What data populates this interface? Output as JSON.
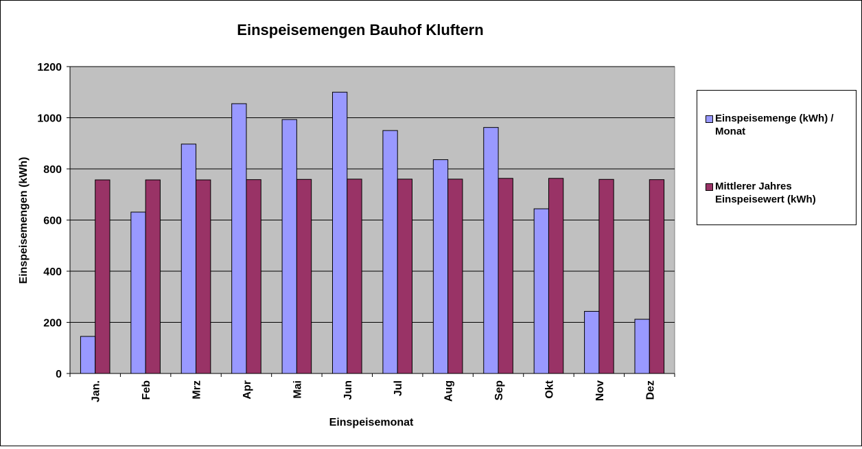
{
  "chart_data": {
    "type": "bar",
    "title": "Einspeisemengen Bauhof Kluftern",
    "xlabel": "Einspeisemonat",
    "ylabel": "Einspeisemengen (kWh)",
    "ylim": [
      0,
      1200
    ],
    "yticks": [
      0,
      200,
      400,
      600,
      800,
      1000,
      1200
    ],
    "grid": true,
    "legend_position": "right",
    "categories": [
      "Jan.",
      "Feb",
      "Mrz",
      "Apr",
      "Mai",
      "Jun",
      "Jul",
      "Aug",
      "Sep",
      "Okt",
      "Nov",
      "Dez"
    ],
    "series": [
      {
        "name": "Einspeisemenge (kWh) / Monat",
        "color": "#9999ff",
        "values": [
          145,
          631,
          897,
          1055,
          993,
          1100,
          950,
          836,
          962,
          644,
          243,
          212
        ]
      },
      {
        "name": "Mittlerer Jahres Einspeisewert (kWh)",
        "color": "#993366",
        "values": [
          757,
          757,
          757,
          758,
          759,
          760,
          760,
          760,
          763,
          763,
          759,
          758
        ]
      }
    ],
    "plot_background": "#c0c0c0"
  }
}
